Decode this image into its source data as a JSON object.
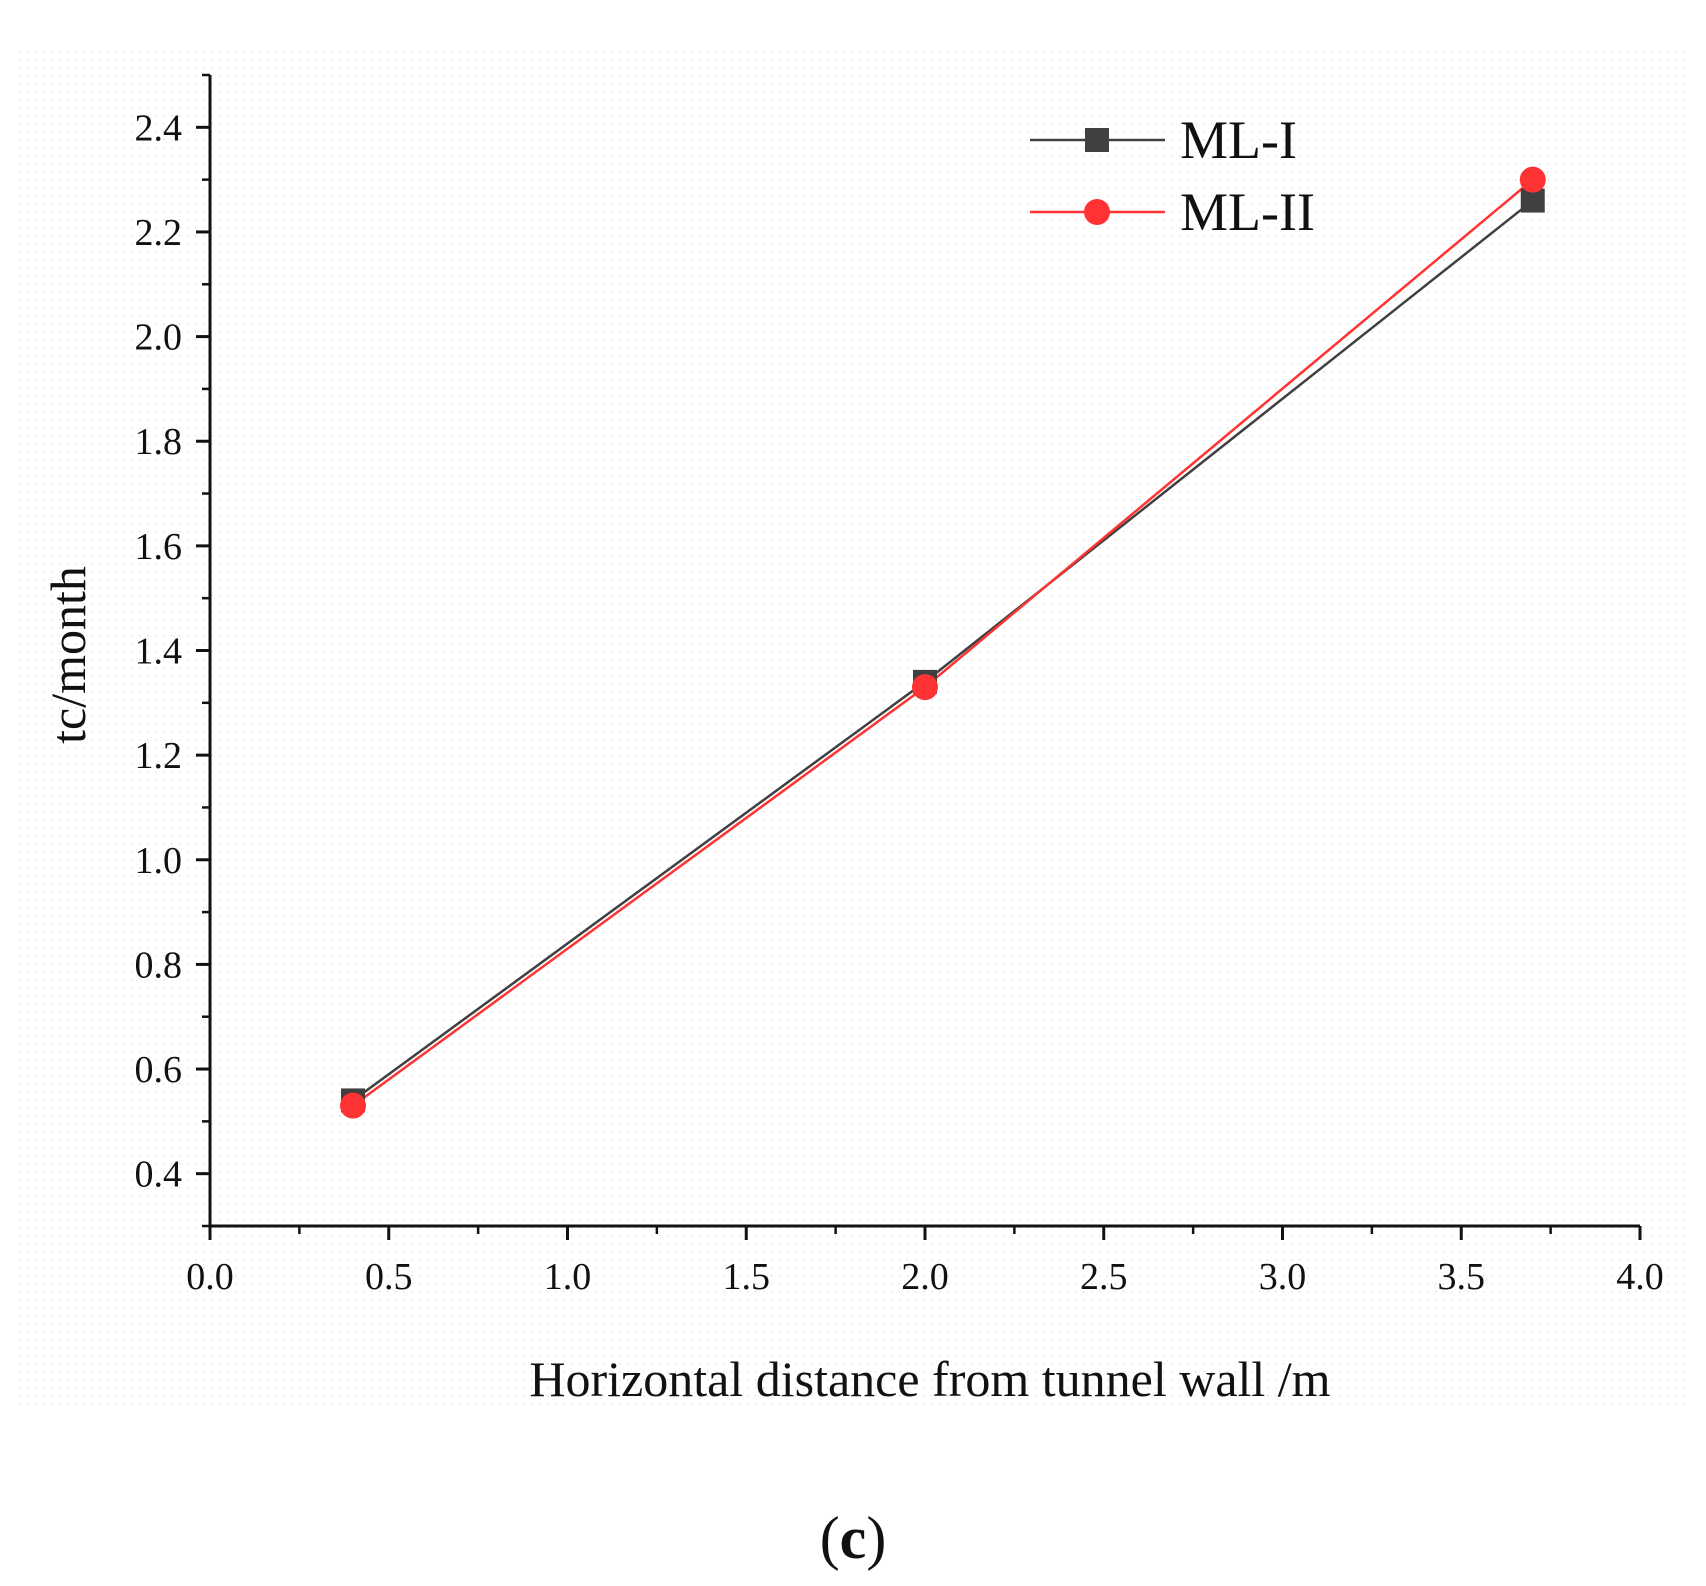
{
  "chart_data": {
    "type": "line",
    "title": "",
    "xlabel": "Horizontal distance from tunnel wall /m",
    "ylabel": "tc/month",
    "xlim": [
      0.0,
      4.0
    ],
    "ylim": [
      0.3,
      2.5
    ],
    "xticks": [
      "0.0",
      "0.5",
      "1.0",
      "1.5",
      "2.0",
      "2.5",
      "3.0",
      "3.5",
      "4.0"
    ],
    "yticks": [
      "0.4",
      "0.6",
      "0.8",
      "1.0",
      "1.2",
      "1.4",
      "1.6",
      "1.8",
      "2.0",
      "2.2",
      "2.4"
    ],
    "grid": false,
    "legend_position": "top-right",
    "x": [
      0.4,
      2.0,
      3.7
    ],
    "series": [
      {
        "name": "ML-I",
        "marker": "square",
        "color": "#404040",
        "values": [
          0.54,
          1.34,
          2.26
        ]
      },
      {
        "name": "ML-II",
        "marker": "circle",
        "color": "#ff3333",
        "values": [
          0.53,
          1.33,
          2.3
        ]
      }
    ],
    "panel_label": {
      "open": "(",
      "letter": "c",
      "close": ")"
    }
  }
}
